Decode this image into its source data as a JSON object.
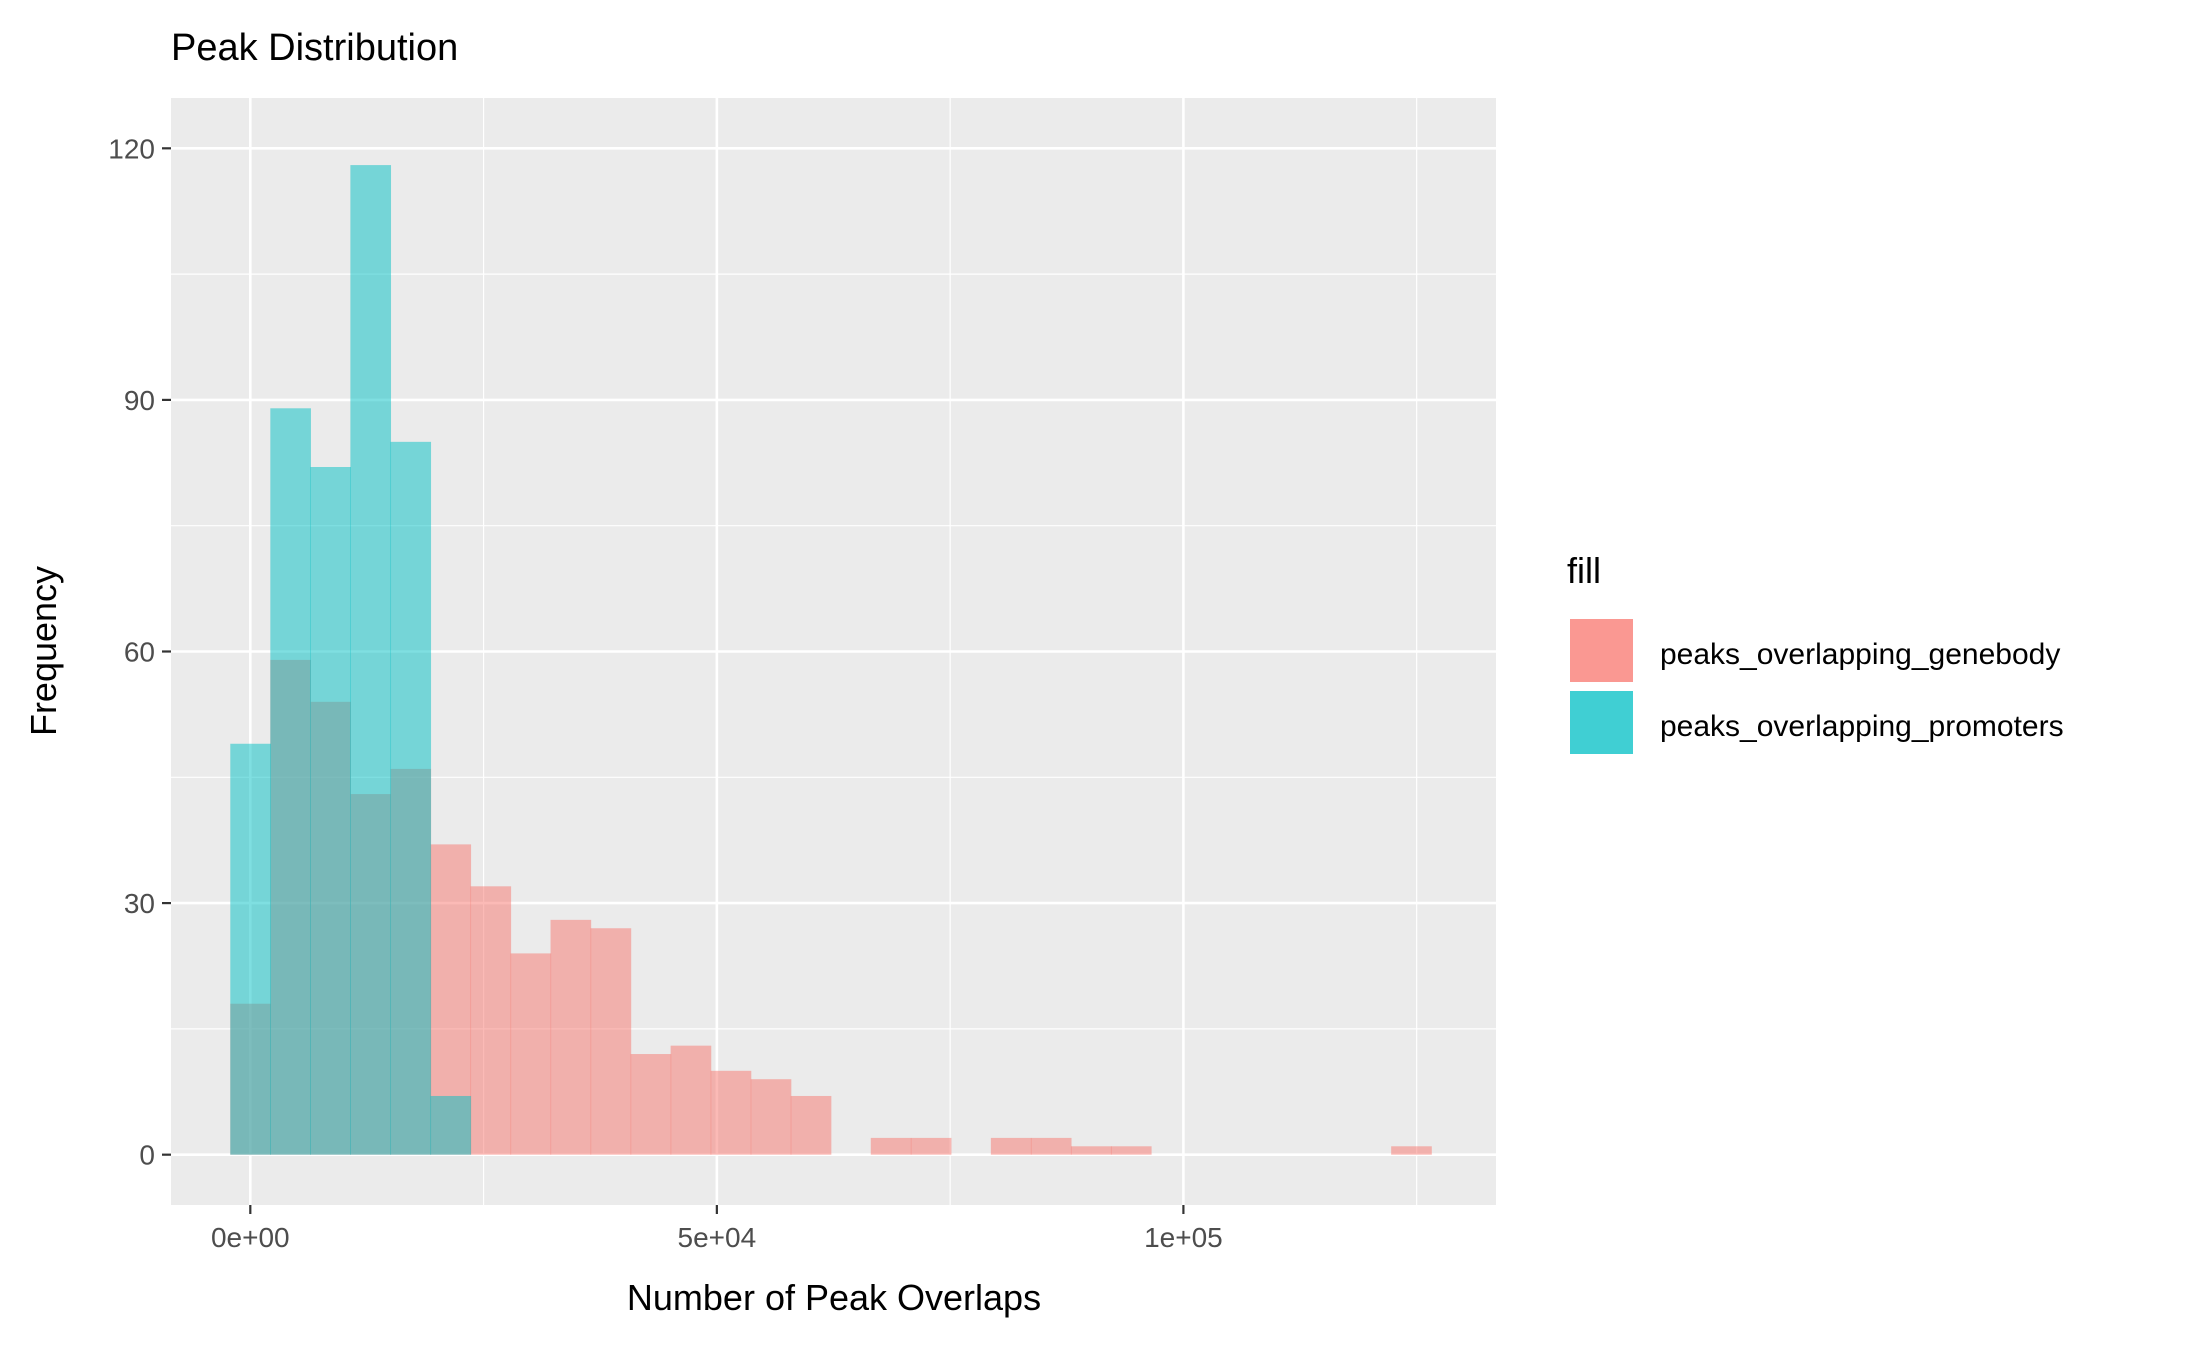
{
  "chart_data": {
    "type": "bar",
    "subtype": "overlapping-histogram",
    "title": "Peak Distribution",
    "xlabel": "Number of Peak Overlaps",
    "ylabel": "Frequency",
    "xlim": [
      -8500,
      133500
    ],
    "ylim": [
      -6,
      126
    ],
    "x_ticks": [
      0,
      50000,
      100000
    ],
    "x_tick_labels": [
      "0e+00",
      "5e+04",
      "1e+05"
    ],
    "y_ticks": [
      0,
      30,
      60,
      90,
      120
    ],
    "y_tick_labels": [
      "0",
      "30",
      "60",
      "90",
      "120"
    ],
    "bin_width": 4290,
    "bin_start": -2145,
    "grid": true,
    "legend": {
      "title": "fill",
      "position": "right"
    },
    "series": [
      {
        "name": "peaks_overlapping_genebody",
        "color": "#F8766D",
        "opacity": 0.5,
        "counts": [
          18,
          59,
          54,
          43,
          46,
          37,
          32,
          24,
          28,
          27,
          12,
          13,
          10,
          9,
          7,
          0,
          2,
          2,
          0,
          2,
          2,
          1,
          1,
          0,
          0,
          0,
          0,
          0,
          0,
          1
        ]
      },
      {
        "name": "peaks_overlapping_promoters",
        "color": "#00BFC4",
        "opacity": 0.5,
        "counts": [
          49,
          89,
          82,
          118,
          85,
          7
        ]
      }
    ]
  },
  "colors": {
    "panel_background": "#EBEBEB",
    "grid_major": "#FFFFFF",
    "axis_text": "#4D4D4D",
    "axis_ticks": "#333333"
  }
}
